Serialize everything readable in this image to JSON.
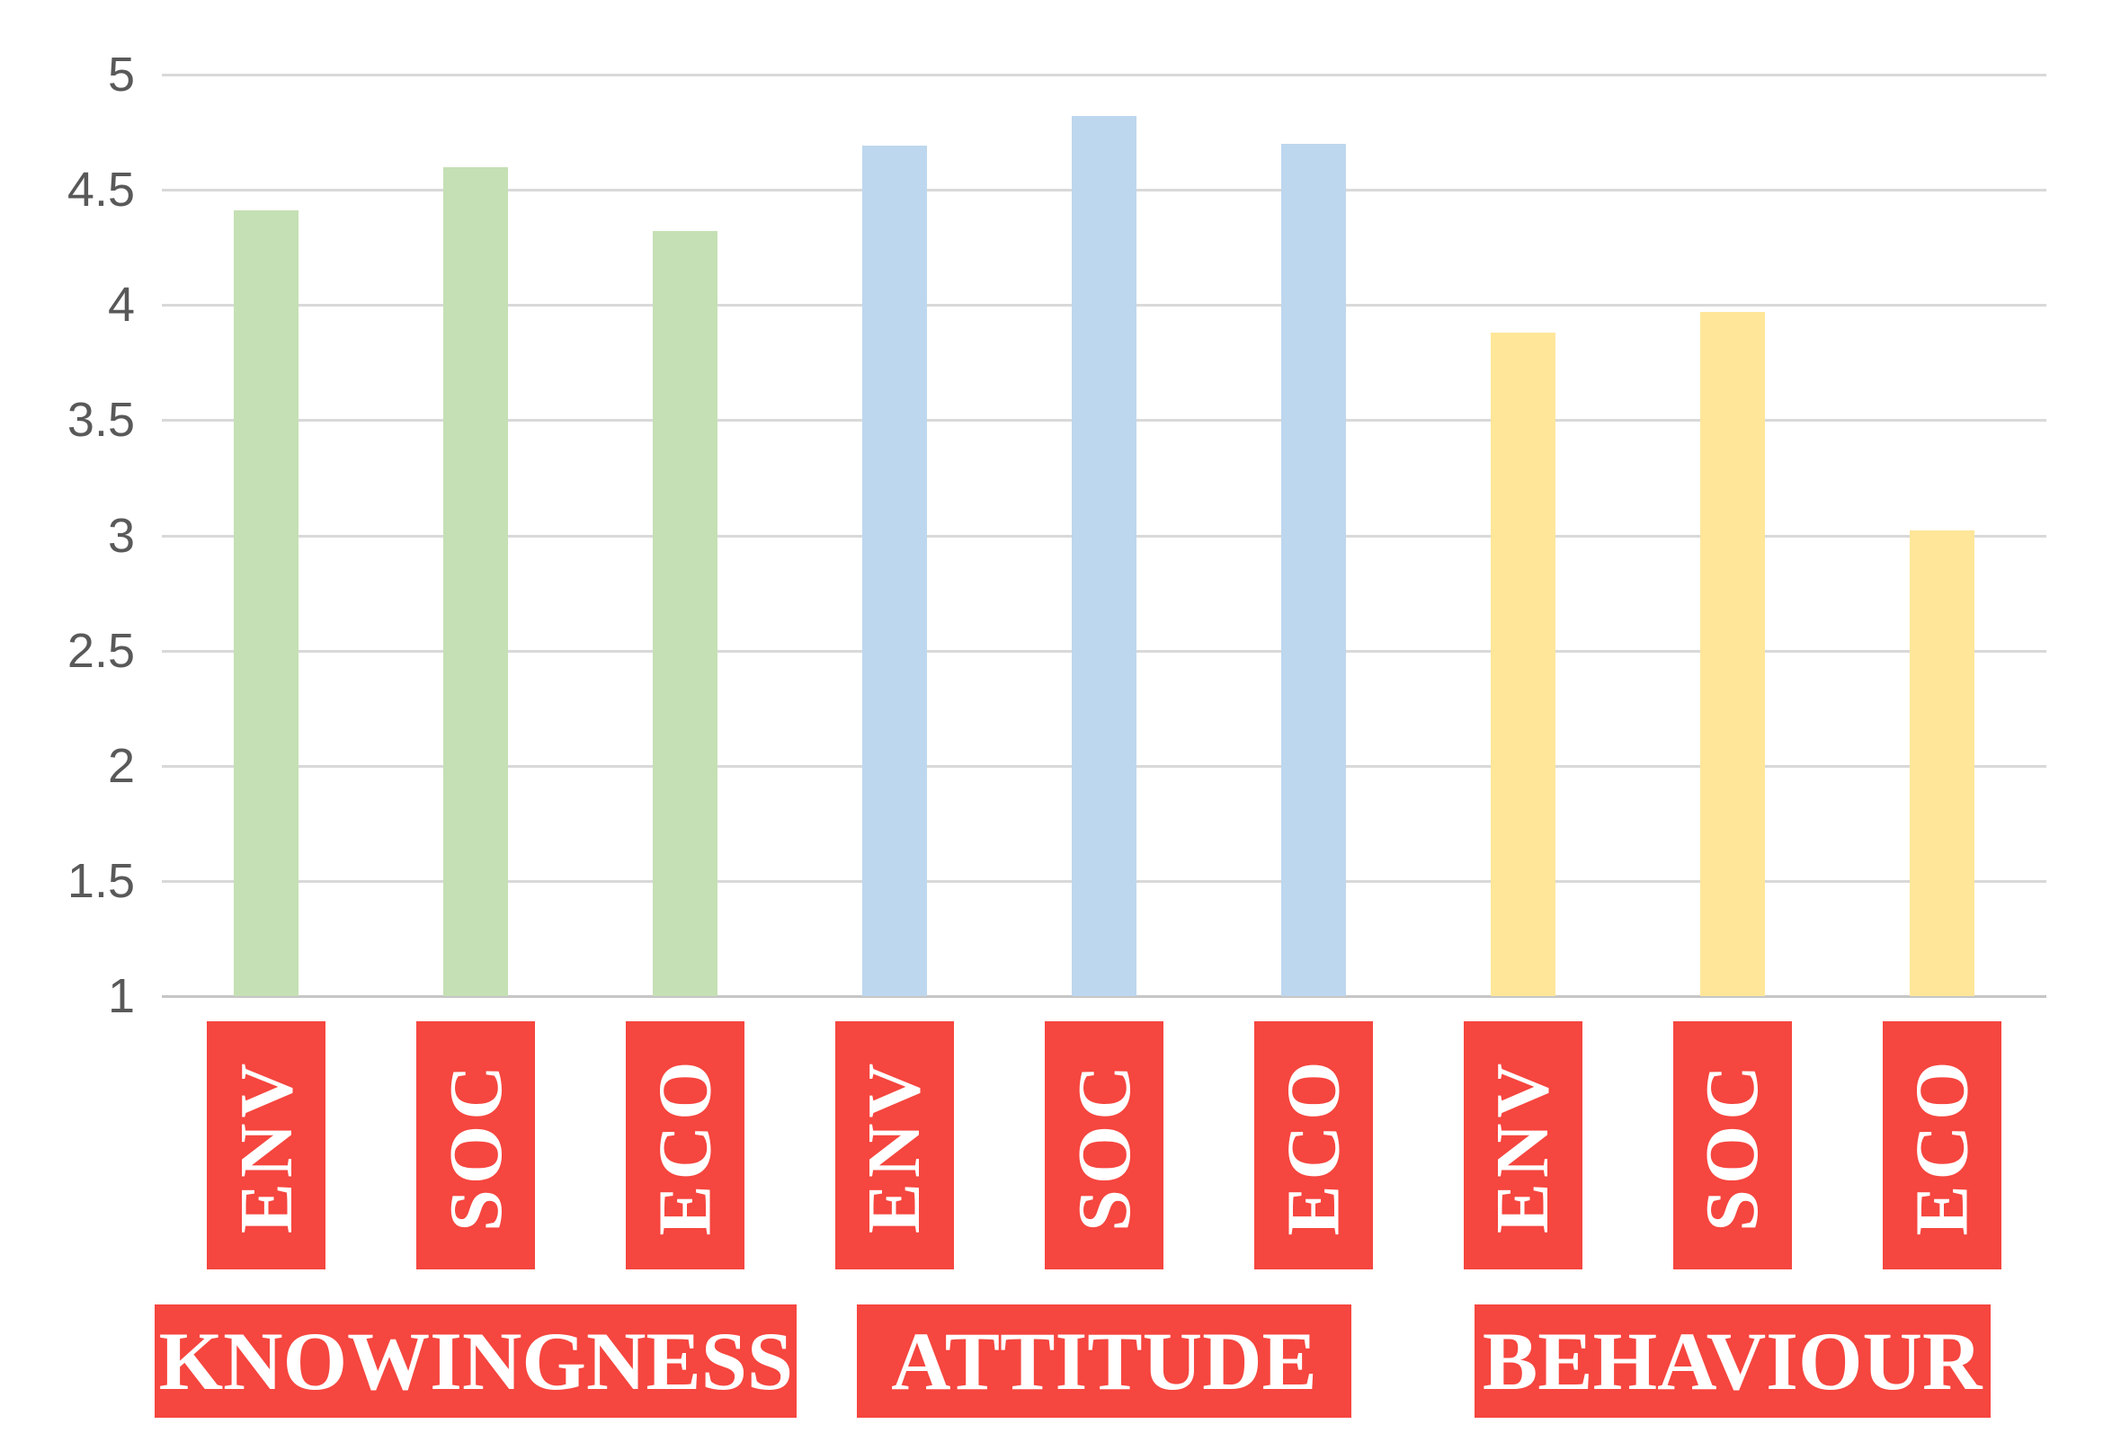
{
  "chart_data": {
    "type": "bar",
    "title": "",
    "xlabel": "",
    "ylabel": "",
    "ylim": [
      1,
      5
    ],
    "y_ticks": [
      "5",
      "4.5",
      "4",
      "3.5",
      "3",
      "2.5",
      "2",
      "1.5",
      "1"
    ],
    "grid": true,
    "legend": "none",
    "groups": [
      {
        "label": "KNOWINGNESS",
        "bar_color": "#C5E0B4",
        "bars": [
          {
            "label": "ENV",
            "value": 4.41
          },
          {
            "label": "SOC",
            "value": 4.6
          },
          {
            "label": "ECO",
            "value": 4.32
          }
        ]
      },
      {
        "label": "ATTITUDE",
        "bar_color": "#BDD7EE",
        "bars": [
          {
            "label": "ENV",
            "value": 4.69
          },
          {
            "label": "SOC",
            "value": 4.82
          },
          {
            "label": "ECO",
            "value": 4.7
          }
        ]
      },
      {
        "label": "BEHAVIOUR",
        "bar_color": "#FFE699",
        "bars": [
          {
            "label": "ENV",
            "value": 3.88
          },
          {
            "label": "SOC",
            "value": 3.97
          },
          {
            "label": "ECO",
            "value": 3.02
          }
        ]
      }
    ],
    "colors": {
      "label_box": "#F5463F",
      "label_text": "#FFFFFF",
      "gridline": "#D9D9D9",
      "axis_text": "#595959",
      "background": "#FFFFFF"
    }
  }
}
